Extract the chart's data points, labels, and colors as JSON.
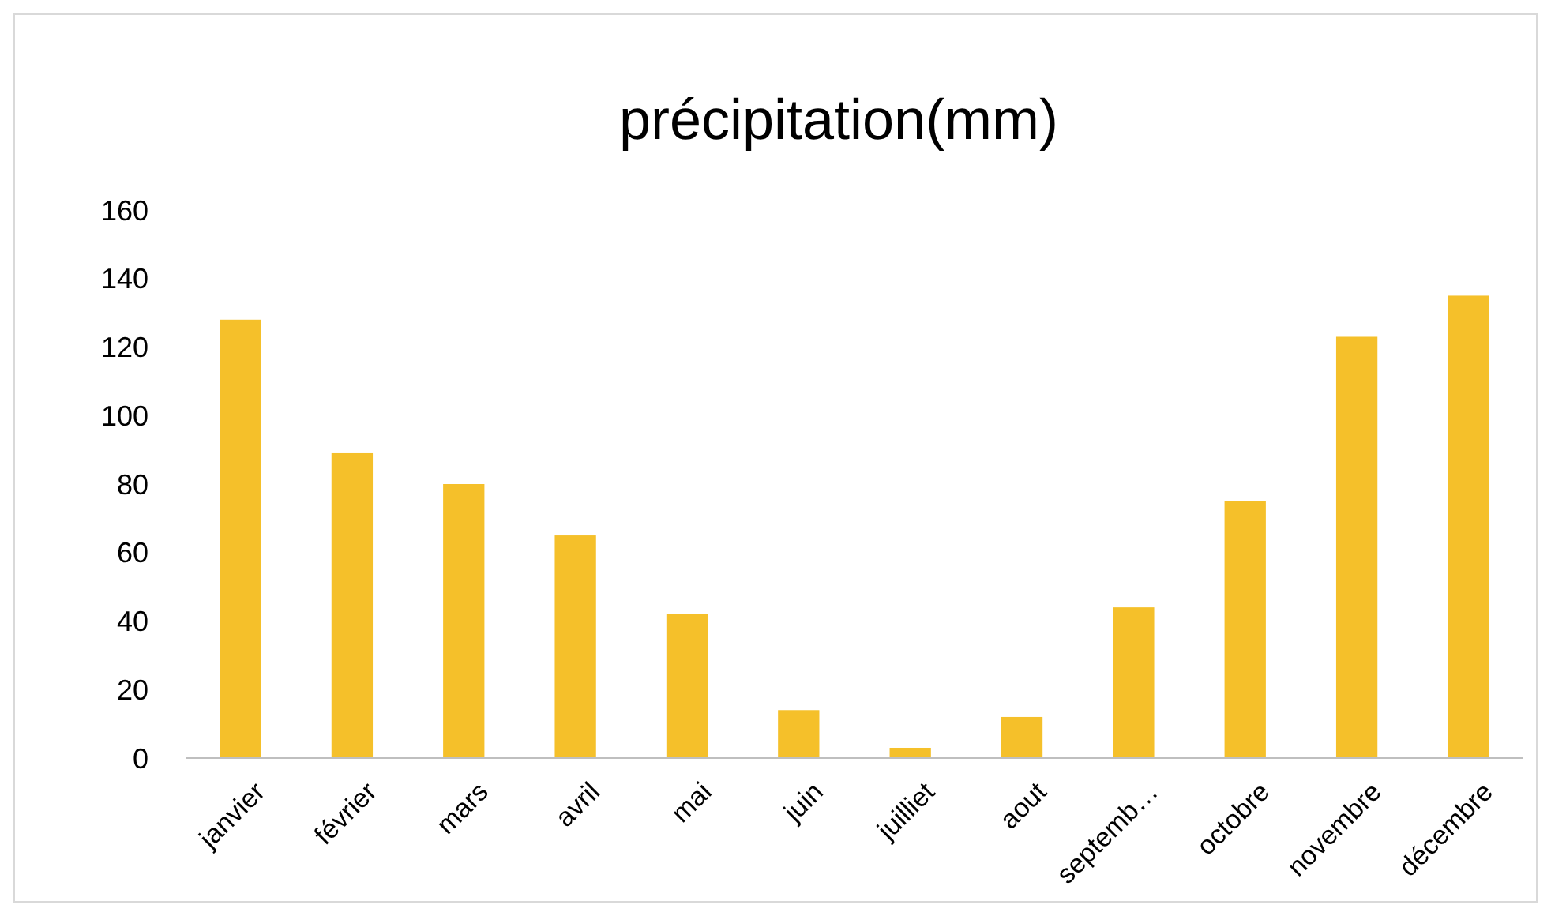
{
  "chart_data": {
    "type": "bar",
    "title": "précipitation(mm)",
    "categories": [
      "janvier",
      "février",
      "mars",
      "avril",
      "mai",
      "juin",
      "juilliet",
      "aout",
      "septemb…",
      "octobre",
      "novembre",
      "décembre"
    ],
    "values": [
      128,
      89,
      80,
      65,
      42,
      14,
      3,
      12,
      44,
      75,
      123,
      135
    ],
    "color": "#f5c02a",
    "ylim": [
      0,
      160
    ],
    "yticks": [
      0,
      20,
      40,
      60,
      80,
      100,
      120,
      140,
      160
    ],
    "grid": false
  }
}
